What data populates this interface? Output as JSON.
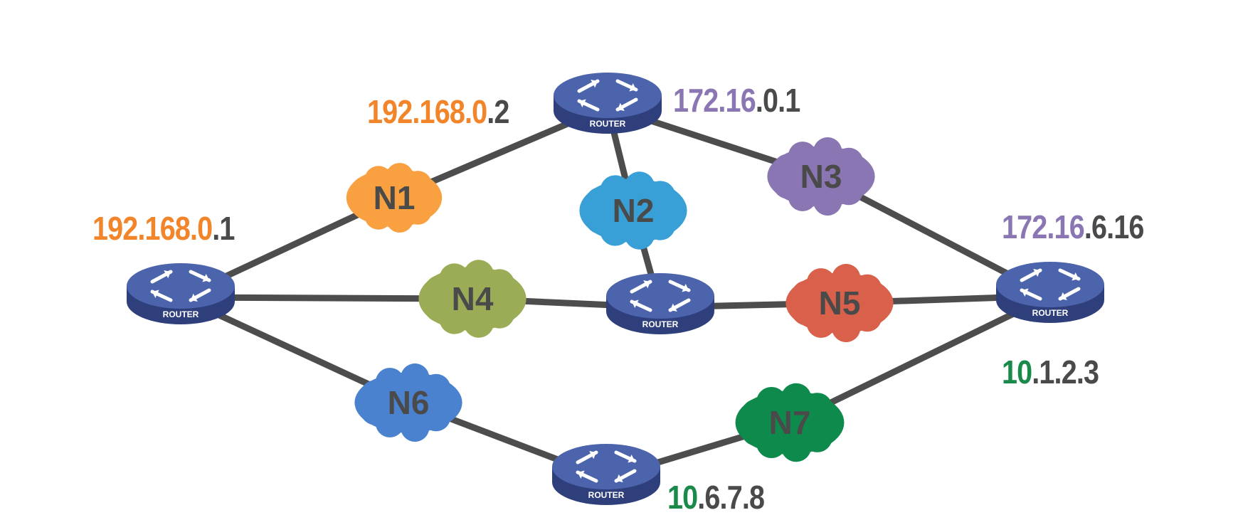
{
  "colors": {
    "orange": "#f2852a",
    "purple": "#8a76b2",
    "green": "#1a8a4a",
    "gray": "#4a4a4a",
    "link": "#4d4d4d",
    "router_top": "#4c64ac",
    "router_side": "#2e3f7c",
    "router_arrow": "#ffffff"
  },
  "router_label": "ROUTER",
  "routers": [
    {
      "id": "top",
      "label": "ROUTER"
    },
    {
      "id": "left",
      "label": "ROUTER"
    },
    {
      "id": "center",
      "label": "ROUTER"
    },
    {
      "id": "right",
      "label": "ROUTER"
    },
    {
      "id": "bottom",
      "label": "ROUTER"
    }
  ],
  "networks": [
    {
      "id": "N1",
      "label": "N1",
      "color": "#f9a040"
    },
    {
      "id": "N2",
      "label": "N2",
      "color": "#38a0d6"
    },
    {
      "id": "N3",
      "label": "N3",
      "color": "#8a76b2"
    },
    {
      "id": "N4",
      "label": "N4",
      "color": "#9aad56"
    },
    {
      "id": "N5",
      "label": "N5",
      "color": "#d9604a"
    },
    {
      "id": "N6",
      "label": "N6",
      "color": "#4a82d0"
    },
    {
      "id": "N7",
      "label": "N7",
      "color": "#0e8a4c"
    }
  ],
  "addresses": {
    "top_left": {
      "net": "192.168.0",
      "host": ".2",
      "color": "#f2852a"
    },
    "top_right": {
      "net": "172.16",
      "host": ".0.1",
      "color": "#8a76b2"
    },
    "left": {
      "net": "192.168.0",
      "host": ".1",
      "color": "#f2852a"
    },
    "right_top": {
      "net": "172.16",
      "host": ".6.16",
      "color": "#8a76b2"
    },
    "right_bottom": {
      "net": "10",
      "host": ".1.2.3",
      "color": "#1a8a4a"
    },
    "bottom": {
      "net": "10",
      "host": ".6.7.8",
      "color": "#1a8a4a"
    }
  }
}
